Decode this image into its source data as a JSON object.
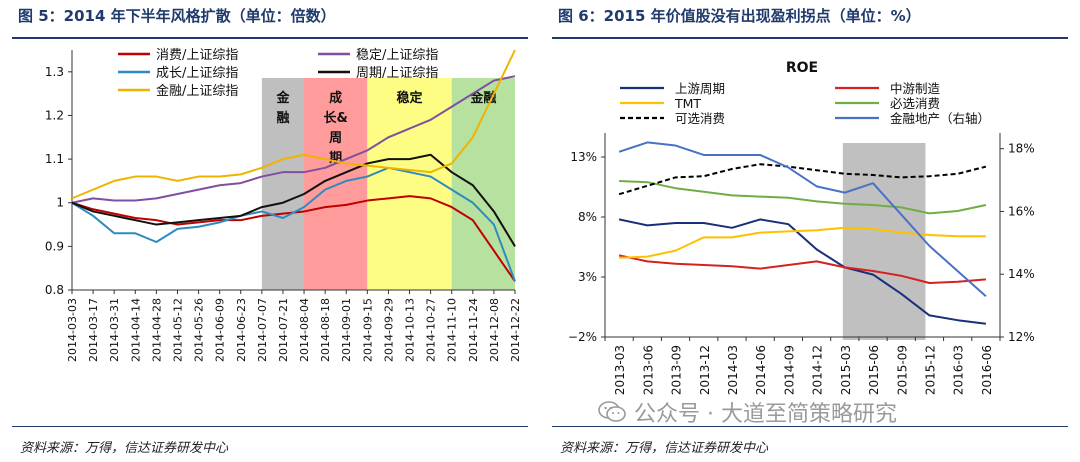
{
  "left_figure": {
    "title": "图 5：2014 年下半年风格扩散（单位：倍数）",
    "source": "资料来源：万得，信达证券研发中心"
  },
  "right_figure": {
    "title": "图 6：2015 年价值股没有出现盈利拐点（单位：%）",
    "source": "资料来源：万得，信达证券研发中心"
  },
  "watermark": {
    "text": "公众号 · 大道至简策略研究",
    "icon": "wechat-icon"
  },
  "chart_data": [
    {
      "type": "line",
      "title": "",
      "ylim": [
        0.8,
        1.35
      ],
      "y_ticks": [
        "0.8",
        "0.9",
        "1",
        "1.1",
        "1.2",
        "1.3"
      ],
      "grid": false,
      "legend_position": "top",
      "categories": [
        "2014-03-03",
        "2014-03-17",
        "2014-03-31",
        "2014-04-14",
        "2014-04-28",
        "2014-05-12",
        "2014-05-26",
        "2014-06-09",
        "2014-06-23",
        "2014-07-07",
        "2014-07-21",
        "2014-08-04",
        "2014-08-18",
        "2014-09-01",
        "2014-09-15",
        "2014-09-29",
        "2014-10-13",
        "2014-10-27",
        "2014-11-10",
        "2014-11-24",
        "2014-12-08",
        "2014-12-22"
      ],
      "regions": [
        {
          "label": "金\n融",
          "from": "2014-07-07",
          "to": "2014-08-04",
          "color": "#b4b4b4"
        },
        {
          "label": "成\n长&\n周\n期",
          "from": "2014-08-04",
          "to": "2014-09-15",
          "color": "#ff8a8a"
        },
        {
          "label": "稳定",
          "from": "2014-09-15",
          "to": "2014-11-10",
          "color": "#fdfd6e"
        },
        {
          "label": "金融",
          "from": "2014-11-10",
          "to": "2014-12-22",
          "color": "#a9dc8e"
        }
      ],
      "series": [
        {
          "name": "消费/上证综指",
          "color": "#c00000",
          "values": [
            1.0,
            0.985,
            0.975,
            0.965,
            0.96,
            0.95,
            0.955,
            0.96,
            0.96,
            0.97,
            0.975,
            0.98,
            0.99,
            0.995,
            1.005,
            1.01,
            1.015,
            1.01,
            0.99,
            0.96,
            0.89,
            0.82
          ]
        },
        {
          "name": "稳定/上证综指",
          "color": "#7f4fa0",
          "values": [
            1.0,
            1.01,
            1.005,
            1.005,
            1.01,
            1.02,
            1.03,
            1.04,
            1.045,
            1.06,
            1.07,
            1.07,
            1.08,
            1.1,
            1.12,
            1.15,
            1.17,
            1.19,
            1.22,
            1.25,
            1.28,
            1.29
          ]
        },
        {
          "name": "成长/上证综指",
          "color": "#2e8bc0",
          "values": [
            1.0,
            0.97,
            0.93,
            0.93,
            0.91,
            0.94,
            0.945,
            0.955,
            0.97,
            0.98,
            0.965,
            0.99,
            1.03,
            1.05,
            1.06,
            1.08,
            1.07,
            1.06,
            1.03,
            1.0,
            0.95,
            0.82
          ]
        },
        {
          "name": "周期/上证综指",
          "color": "#111111",
          "values": [
            1.0,
            0.98,
            0.97,
            0.96,
            0.95,
            0.955,
            0.96,
            0.965,
            0.97,
            0.99,
            1.0,
            1.02,
            1.05,
            1.07,
            1.09,
            1.1,
            1.1,
            1.11,
            1.07,
            1.04,
            0.98,
            0.9
          ]
        },
        {
          "name": "金融/上证综指",
          "color": "#f0b400",
          "values": [
            1.01,
            1.03,
            1.05,
            1.06,
            1.06,
            1.05,
            1.06,
            1.06,
            1.065,
            1.08,
            1.1,
            1.11,
            1.1,
            1.09,
            1.085,
            1.08,
            1.075,
            1.07,
            1.09,
            1.15,
            1.25,
            1.35
          ]
        }
      ]
    },
    {
      "type": "line",
      "title": "ROE",
      "categories": [
        "2013-03",
        "2013-06",
        "2013-09",
        "2013-12",
        "2014-03",
        "2014-06",
        "2014-09",
        "2014-12",
        "2015-03",
        "2015-06",
        "2015-09",
        "2015-12",
        "2016-03",
        "2016-06"
      ],
      "y_left": {
        "ylim": [
          -2,
          15
        ],
        "ticks": [
          -2,
          3,
          8,
          13
        ],
        "tick_labels": [
          "−2%",
          "3%",
          "8%",
          "13%"
        ]
      },
      "y_right": {
        "ylim": [
          12,
          18.5
        ],
        "ticks": [
          12,
          14,
          16,
          18
        ],
        "tick_labels": [
          "12%",
          "14%",
          "16%",
          "18%"
        ]
      },
      "grid": false,
      "legend_position": "top",
      "regions": [
        {
          "label": "",
          "from": "2015-03",
          "to": "2015-12",
          "color": "#bdbdbd"
        }
      ],
      "series": [
        {
          "name": "上游周期",
          "color": "#1a2f7a",
          "dash": "",
          "axis": "left",
          "values": [
            7.8,
            7.3,
            7.5,
            7.5,
            7.1,
            7.8,
            7.4,
            5.3,
            3.8,
            3.2,
            1.6,
            -0.2,
            -0.6,
            -0.9
          ]
        },
        {
          "name": "中游制造",
          "color": "#d62020",
          "dash": "",
          "axis": "left",
          "values": [
            4.8,
            4.3,
            4.1,
            4.0,
            3.9,
            3.7,
            4.0,
            4.3,
            3.8,
            3.5,
            3.1,
            2.5,
            2.6,
            2.8
          ]
        },
        {
          "name": "TMT",
          "color": "#ffc000",
          "dash": "",
          "axis": "left",
          "values": [
            4.6,
            4.7,
            5.2,
            6.3,
            6.3,
            6.7,
            6.8,
            6.9,
            7.1,
            7.0,
            6.7,
            6.5,
            6.4,
            6.4
          ]
        },
        {
          "name": "必选消费",
          "color": "#70ad47",
          "dash": "",
          "axis": "left",
          "values": [
            11.0,
            10.9,
            10.4,
            10.1,
            9.8,
            9.7,
            9.6,
            9.3,
            9.1,
            9.0,
            8.8,
            8.3,
            8.5,
            9.0
          ]
        },
        {
          "name": "可选消费",
          "color": "#000000",
          "dash": "5,3",
          "axis": "left",
          "values": [
            9.9,
            10.6,
            11.3,
            11.4,
            12.0,
            12.4,
            12.2,
            11.9,
            11.6,
            11.5,
            11.3,
            11.4,
            11.6,
            12.2
          ]
        },
        {
          "name": "金融地产（右轴）",
          "color": "#4a72c4",
          "dash": "",
          "axis": "right",
          "values": [
            17.9,
            18.2,
            18.1,
            17.8,
            17.8,
            17.8,
            17.4,
            16.8,
            16.6,
            16.9,
            15.9,
            14.9,
            14.1,
            13.3
          ]
        }
      ]
    }
  ]
}
